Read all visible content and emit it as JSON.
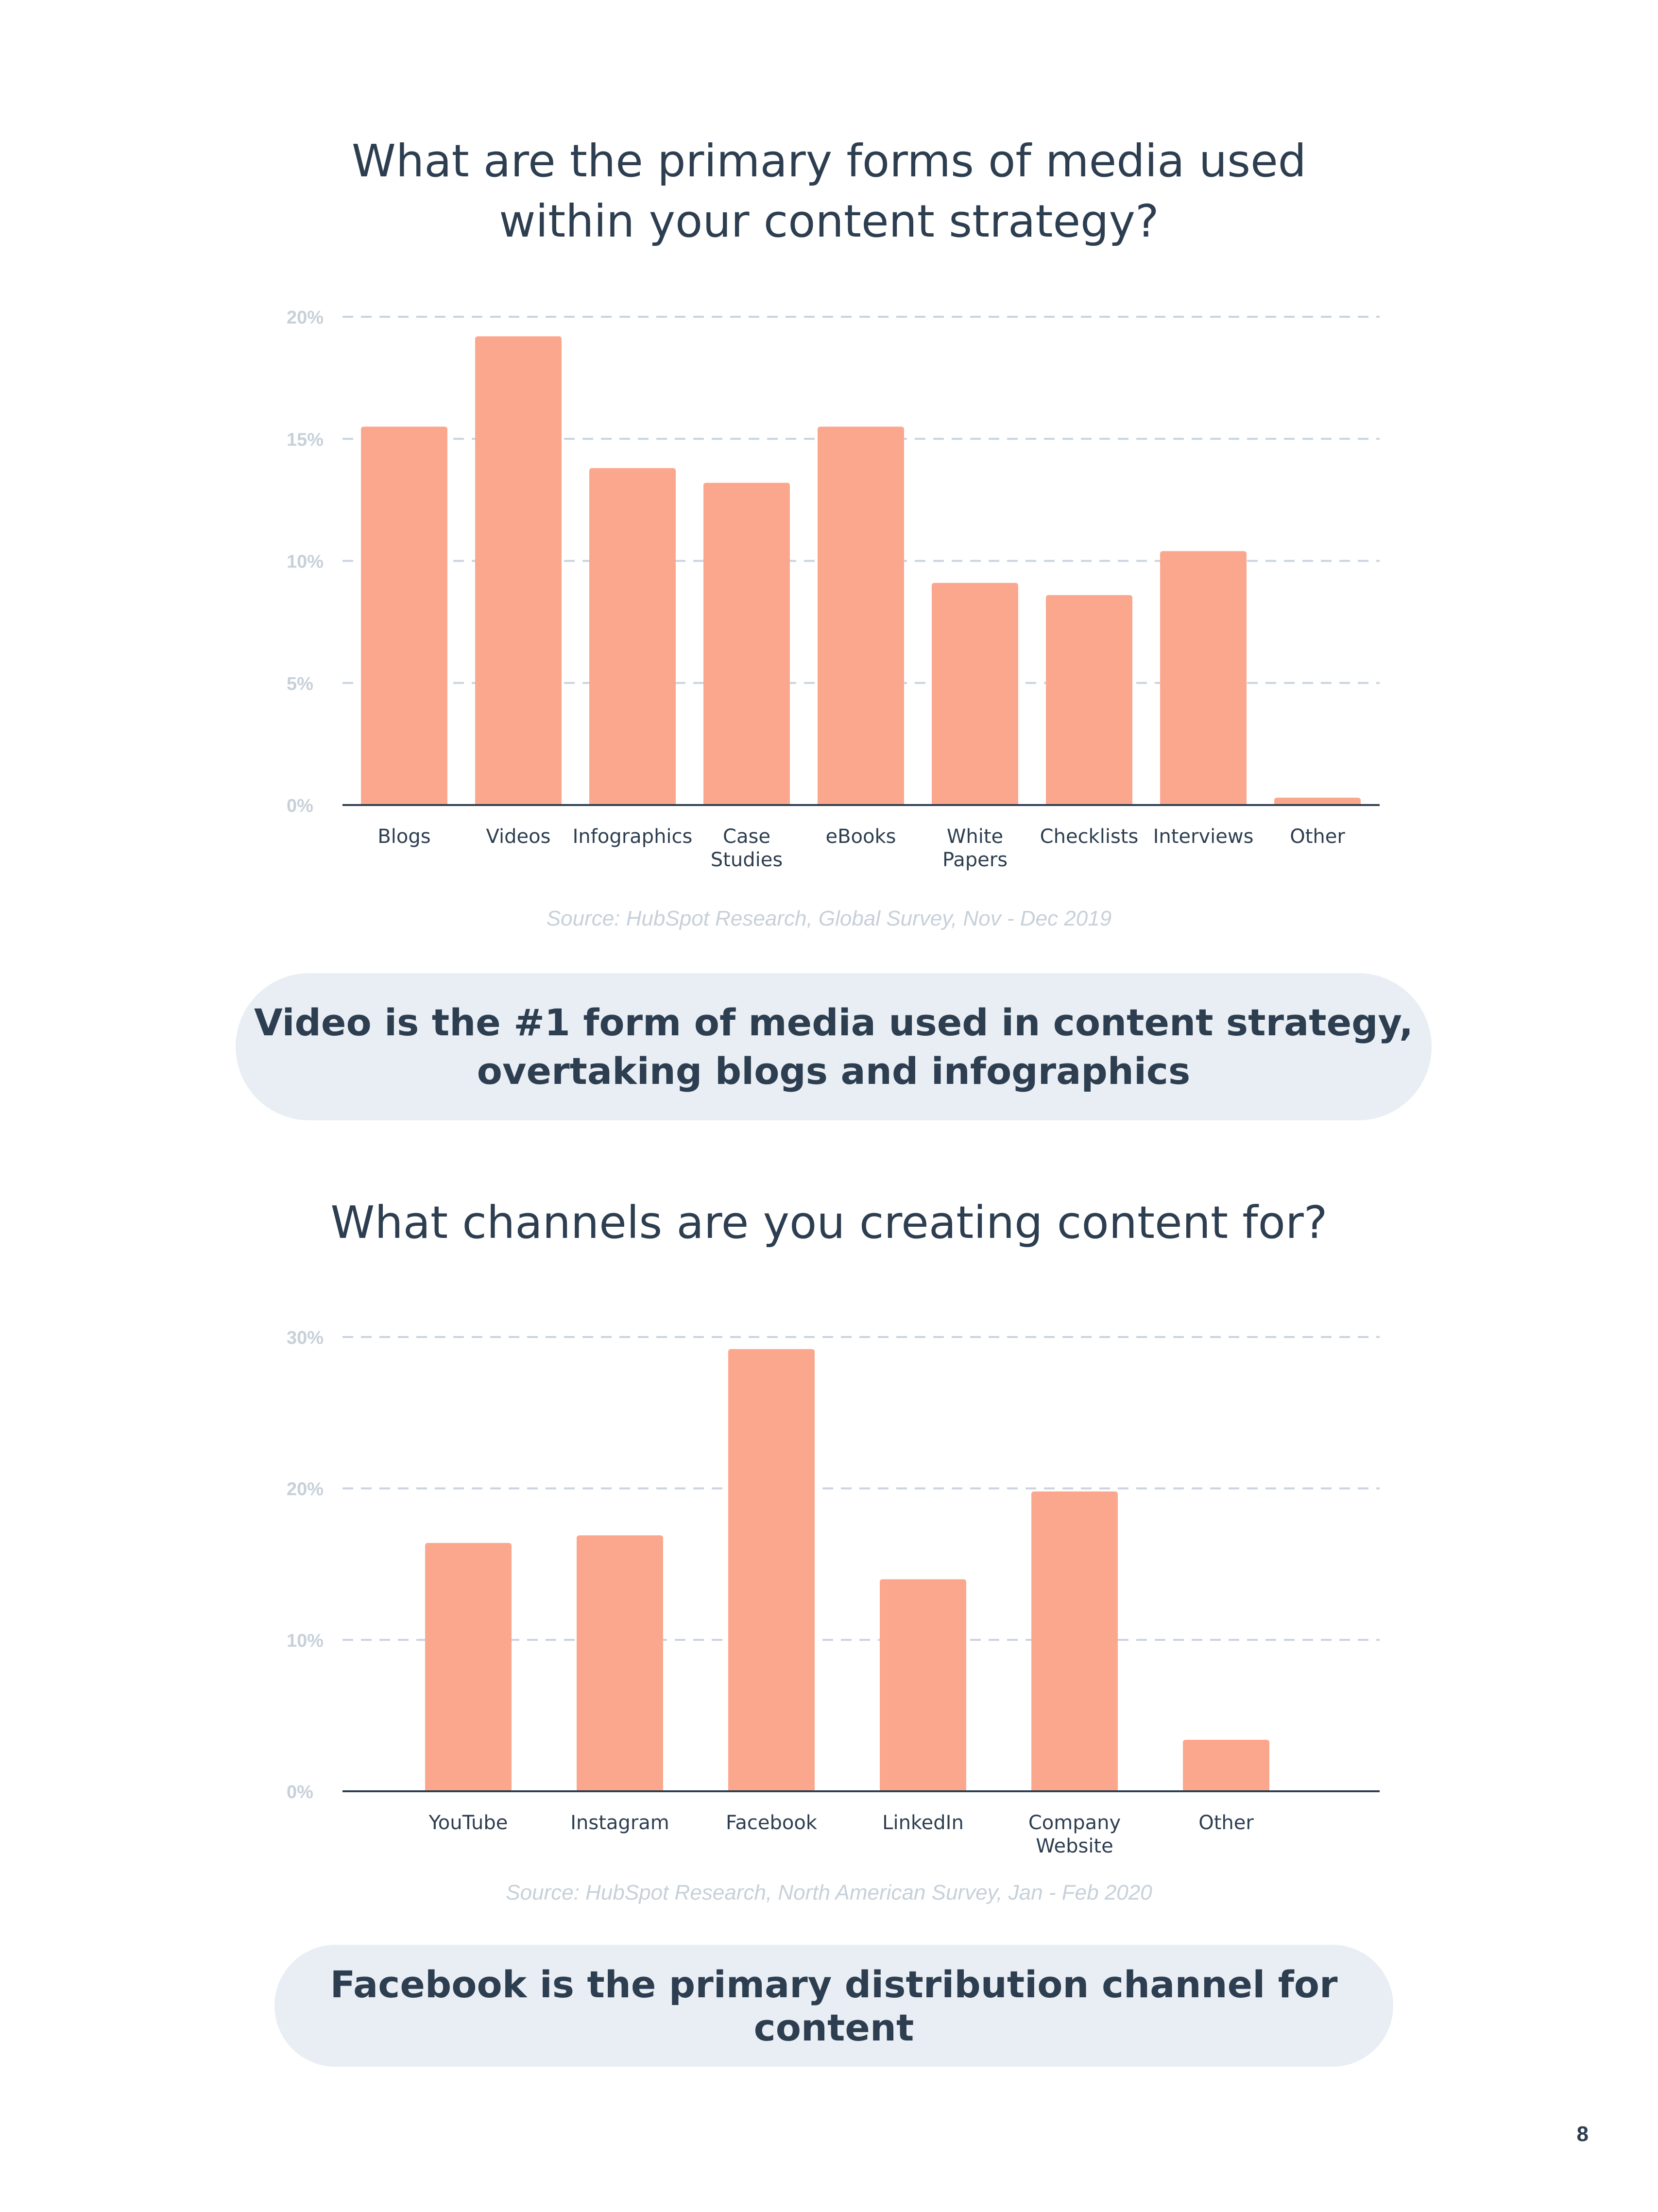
{
  "chart_data": [
    {
      "type": "bar",
      "title": "What are the primary forms of media used within your content strategy?",
      "title_lines": [
        "What are the primary forms of media used",
        "within your content strategy?"
      ],
      "categories": [
        "Blogs",
        "Videos",
        "Infographics",
        "Case Studies",
        "eBooks",
        "White Papers",
        "Checklists",
        "Interviews",
        "Other"
      ],
      "category_lines": [
        [
          "Blogs"
        ],
        [
          "Videos"
        ],
        [
          "Infographics"
        ],
        [
          "Case",
          "Studies"
        ],
        [
          "eBooks"
        ],
        [
          "White",
          "Papers"
        ],
        [
          "Checklists"
        ],
        [
          "Interviews"
        ],
        [
          "Other"
        ]
      ],
      "values": [
        15.5,
        19.2,
        13.8,
        13.2,
        15.5,
        9.1,
        8.6,
        10.4,
        0.3
      ],
      "yticks": [
        "0%",
        "5%",
        "10%",
        "15%",
        "20%"
      ],
      "ytick_values": [
        0,
        5,
        10,
        15,
        20
      ],
      "ylim": [
        0,
        20
      ],
      "grid": true,
      "source": "Source: HubSpot Research, Global Survey, Nov - Dec 2019",
      "bar_color": "#fba78e"
    },
    {
      "type": "bar",
      "title": "What channels are you creating content for?",
      "title_lines": [
        "What channels are you creating content for?"
      ],
      "categories": [
        "YouTube",
        "Instagram",
        "Facebook",
        "LinkedIn",
        "Company Website",
        "Other"
      ],
      "category_lines": [
        [
          "YouTube"
        ],
        [
          "Instagram"
        ],
        [
          "Facebook"
        ],
        [
          "LinkedIn"
        ],
        [
          "Company",
          "Website"
        ],
        [
          "Other"
        ]
      ],
      "values": [
        16.4,
        16.9,
        29.2,
        14.0,
        19.8,
        3.4
      ],
      "yticks": [
        "0%",
        "10%",
        "20%",
        "30%"
      ],
      "ytick_values": [
        0,
        10,
        20,
        30
      ],
      "ylim": [
        0,
        30
      ],
      "grid": true,
      "source": "Source: HubSpot Research, North American Survey, Jan - Feb 2020",
      "bar_color": "#fba78e"
    }
  ],
  "callouts": {
    "first_lines": [
      "Video is the #1 form of media used in content strategy,",
      "overtaking blogs and infographics"
    ],
    "second": "Facebook is the primary distribution channel for content"
  },
  "page_number": "8"
}
